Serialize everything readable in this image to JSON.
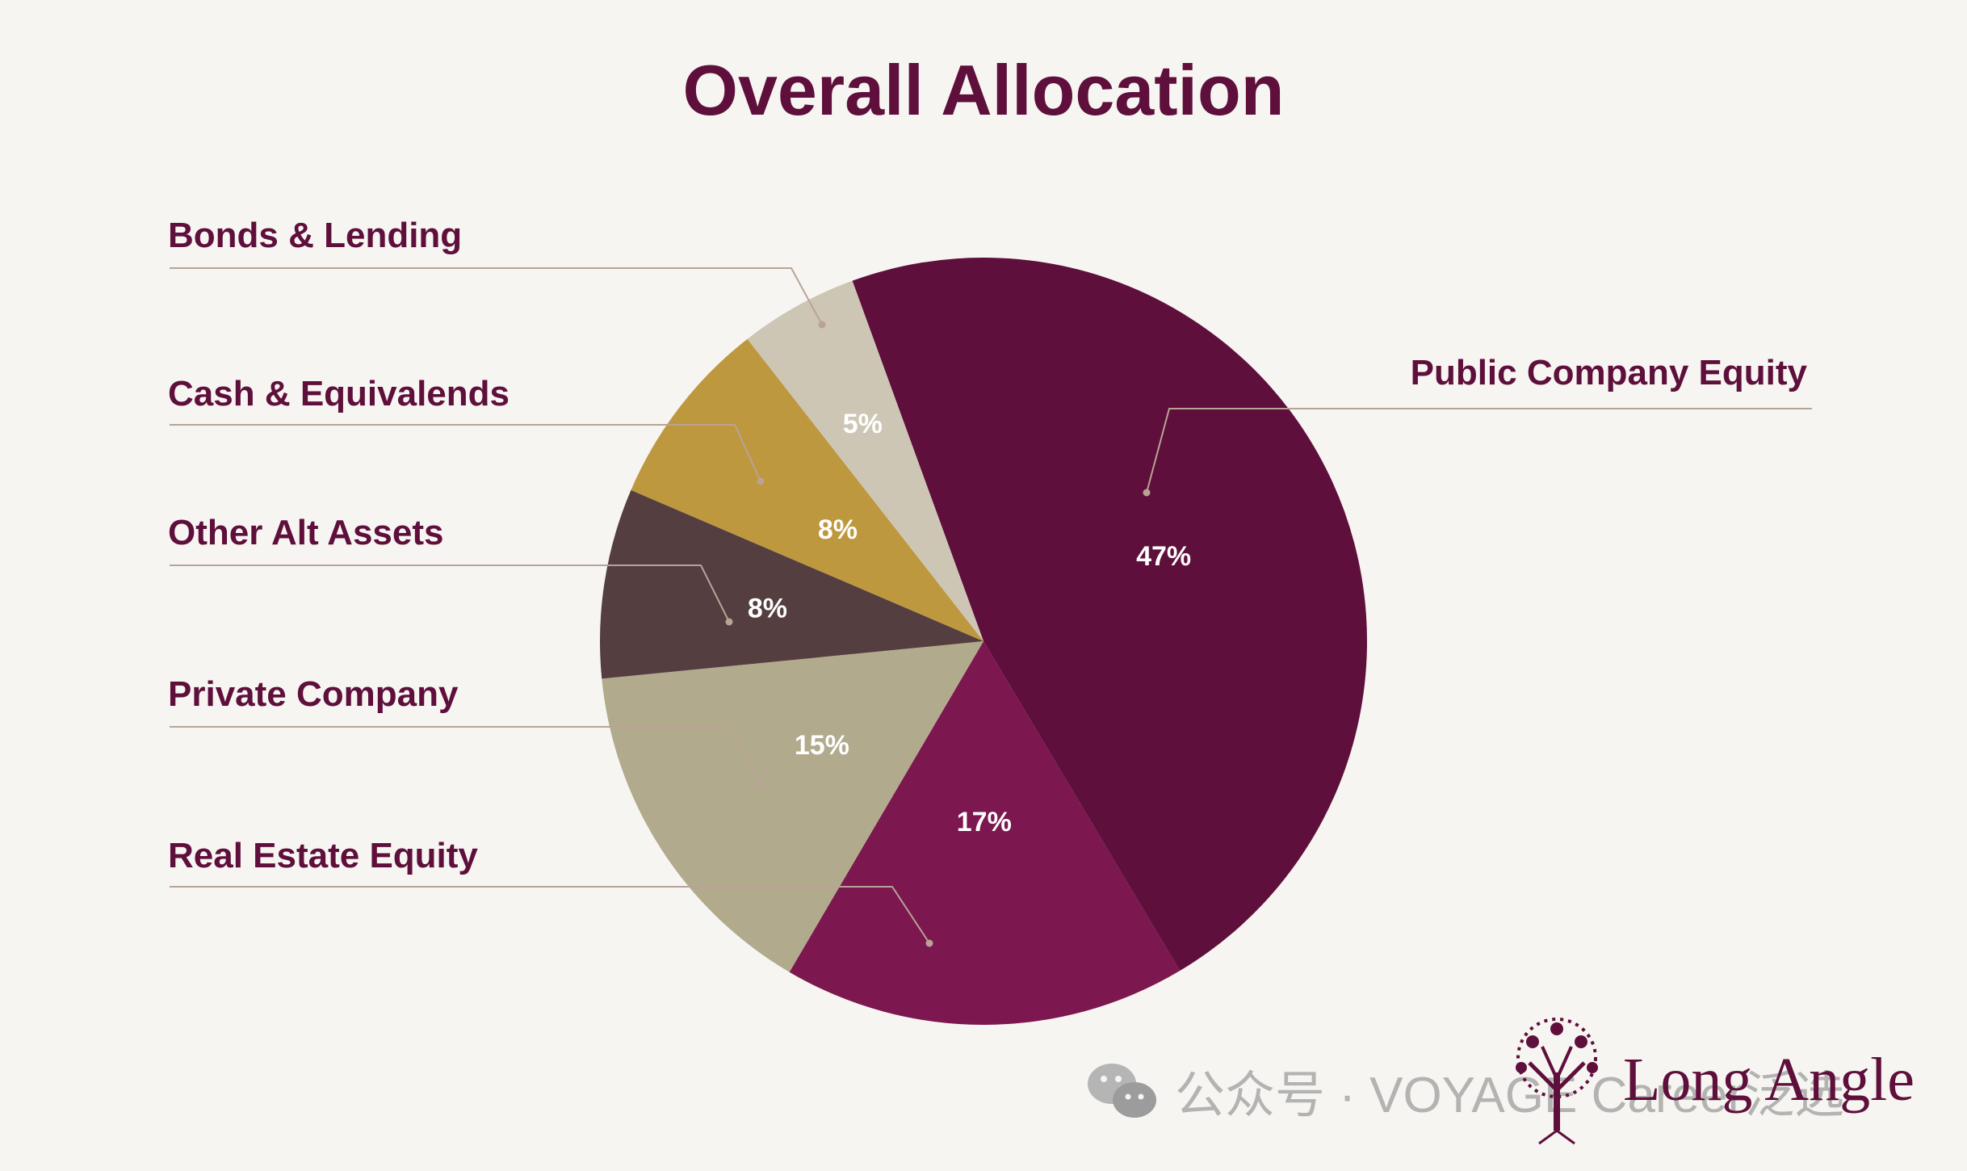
{
  "chart_data": {
    "type": "pie",
    "title": "Overall Allocation",
    "slices": [
      {
        "label": "Public Company Equity",
        "value": 47,
        "value_label": "47%",
        "color": "#5e0f3b"
      },
      {
        "label": "Real Estate Equity",
        "value": 17,
        "value_label": "17%",
        "color": "#7c174f"
      },
      {
        "label": "Private Company",
        "value": 15,
        "value_label": "15%",
        "color": "#b2aa8c"
      },
      {
        "label": "Other Alt Assets",
        "value": 8,
        "value_label": "8%",
        "color": "#543e3f"
      },
      {
        "label": "Cash & Equivalends",
        "value": 8,
        "value_label": "8%",
        "color": "#be983f"
      },
      {
        "label": "Bonds & Lending",
        "value": 5,
        "value_label": "5%",
        "color": "#cec6b5"
      }
    ]
  },
  "watermark": {
    "text": "公众号 · VOYAGE Career泛选",
    "icon": "wechat-icon"
  },
  "brand": {
    "name": "Long Angle",
    "icon": "tree-logo-icon"
  }
}
